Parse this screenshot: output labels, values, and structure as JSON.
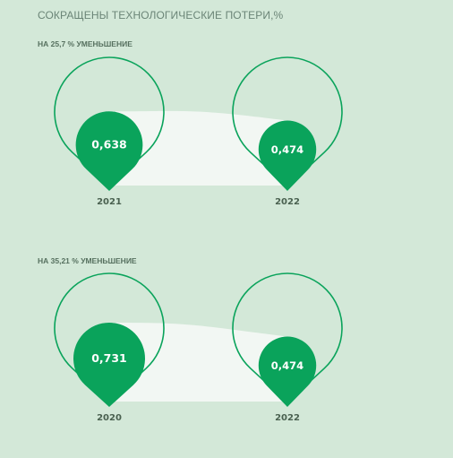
{
  "title": "СОКРАЩЕНЫ ТЕХНОЛОГИЧЕСКИЕ ПОТЕРИ,%",
  "colors": {
    "background": "#d3e8d8",
    "accent": "#0aa35b",
    "band": "#f2f7f3",
    "text": "#4a6150"
  },
  "chart_data": [
    {
      "type": "bubble",
      "subtitle": "НА 25,7 % УМЕНЬШЕНИЕ",
      "categories": [
        "2021",
        "2022"
      ],
      "values": [
        0.638,
        0.474
      ],
      "labels": [
        "0,638",
        "0,474"
      ]
    },
    {
      "type": "bubble",
      "subtitle": "НА 35,21 % УМЕНЬШЕНИЕ",
      "categories": [
        "2020",
        "2022"
      ],
      "values": [
        0.731,
        0.474
      ],
      "labels": [
        "0,731",
        "0,474"
      ]
    }
  ]
}
